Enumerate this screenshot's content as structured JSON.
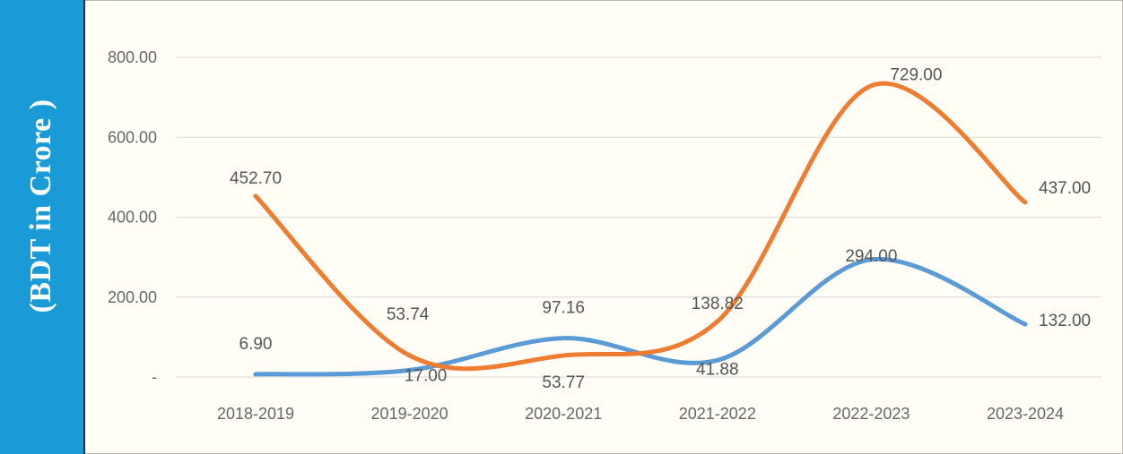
{
  "ylabel": "(BDT in Crore )",
  "colors": {
    "series1": "#5b9bd5",
    "series2": "#ed7d31",
    "sidebar": "#1a9ad6"
  },
  "chart_data": {
    "type": "line",
    "title": "",
    "xlabel": "",
    "ylabel": "(BDT in Crore )",
    "categories": [
      "2018-2019",
      "2019-2020",
      "2020-2021",
      "2021-2022",
      "2022-2023",
      "2023-2024"
    ],
    "ylim": [
      0,
      800
    ],
    "yticks": [
      {
        "value": 0,
        "label": "-"
      },
      {
        "value": 200,
        "label": "200.00"
      },
      {
        "value": 400,
        "label": "400.00"
      },
      {
        "value": 600,
        "label": "600.00"
      },
      {
        "value": 800,
        "label": "800.00"
      }
    ],
    "grid": true,
    "smooth": true,
    "series": [
      {
        "color": "#5b9bd5",
        "values": [
          6.9,
          17.0,
          97.16,
          41.88,
          294.0,
          132.0
        ],
        "labels": [
          "6.90",
          "17.00",
          "97.16",
          "41.88",
          "294.00",
          "132.00"
        ]
      },
      {
        "color": "#ed7d31",
        "values": [
          452.7,
          53.74,
          53.77,
          138.82,
          729.0,
          437.0
        ],
        "labels": [
          "452.70",
          "53.74",
          "53.77",
          "138.82",
          "729.00",
          "437.00"
        ]
      }
    ]
  }
}
